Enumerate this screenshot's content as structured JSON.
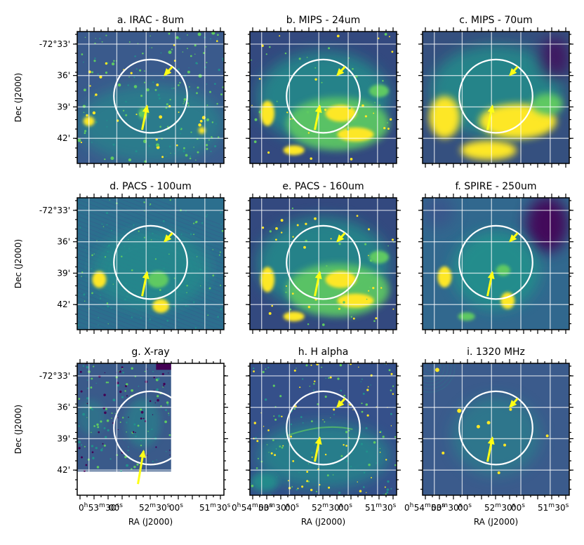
{
  "chart_data": {
    "type": "image-grid",
    "colormap": [
      "#440154",
      "#3b528b",
      "#21918c",
      "#5ec962",
      "#fde725"
    ],
    "accent": "#ffff14",
    "ylabel": "Dec (J2000)",
    "xlabel": "RA (J2000)",
    "y_ticks": [
      {
        "label": "-72°33'",
        "value": -72.55
      },
      {
        "label": "36'",
        "value": -72.6
      },
      {
        "label": "39'",
        "value": -72.65
      },
      {
        "label": "42'",
        "value": -72.7
      }
    ],
    "ra_labels_col1": {
      "major": [
        {
          "h": "0",
          "m": "53",
          "s": "30"
        },
        {
          "s": "00"
        },
        {
          "m": "52",
          "s": "30"
        },
        {
          "s": "00"
        },
        {
          "m": "51",
          "s": "30"
        }
      ],
      "display": "0h53m30s00s 52m30s00s 51m30s"
    },
    "ra_labels_col2": {
      "major": [
        {
          "h": "0",
          "m": "54",
          "s": "00"
        },
        {
          "m": "53",
          "s": "30"
        },
        {
          "s": "00"
        },
        {
          "m": "52",
          "s": "30"
        },
        {
          "s": "00"
        },
        {
          "m": "51",
          "s": "30"
        }
      ]
    },
    "ra_labels_col3": {
      "major": [
        {
          "h": "0",
          "m": "54",
          "s": "00"
        },
        {
          "m": "53",
          "s": "30"
        },
        {
          "s": "00"
        },
        {
          "m": "52",
          "s": "30"
        },
        {
          "s": "00"
        },
        {
          "m": "51",
          "s": "30"
        }
      ]
    },
    "panels": [
      {
        "id": "a",
        "title": "a. IRAC - 8um",
        "style": "stars"
      },
      {
        "id": "b",
        "title": "b. MIPS - 24um",
        "style": "diffuse-mid"
      },
      {
        "id": "c",
        "title": "c. MIPS - 70um",
        "style": "diffuse-bright"
      },
      {
        "id": "d",
        "title": "d. PACS - 100um",
        "style": "noisy"
      },
      {
        "id": "e",
        "title": "e. PACS - 160um",
        "style": "diffuse-mid"
      },
      {
        "id": "f",
        "title": "f. SPIRE - 250um",
        "style": "smooth"
      },
      {
        "id": "g",
        "title": "g. X-ray",
        "style": "xray"
      },
      {
        "id": "h",
        "title": "h. H alpha",
        "style": "halpha"
      },
      {
        "id": "i",
        "title": "i. 1320 MHz",
        "style": "radio"
      }
    ]
  }
}
